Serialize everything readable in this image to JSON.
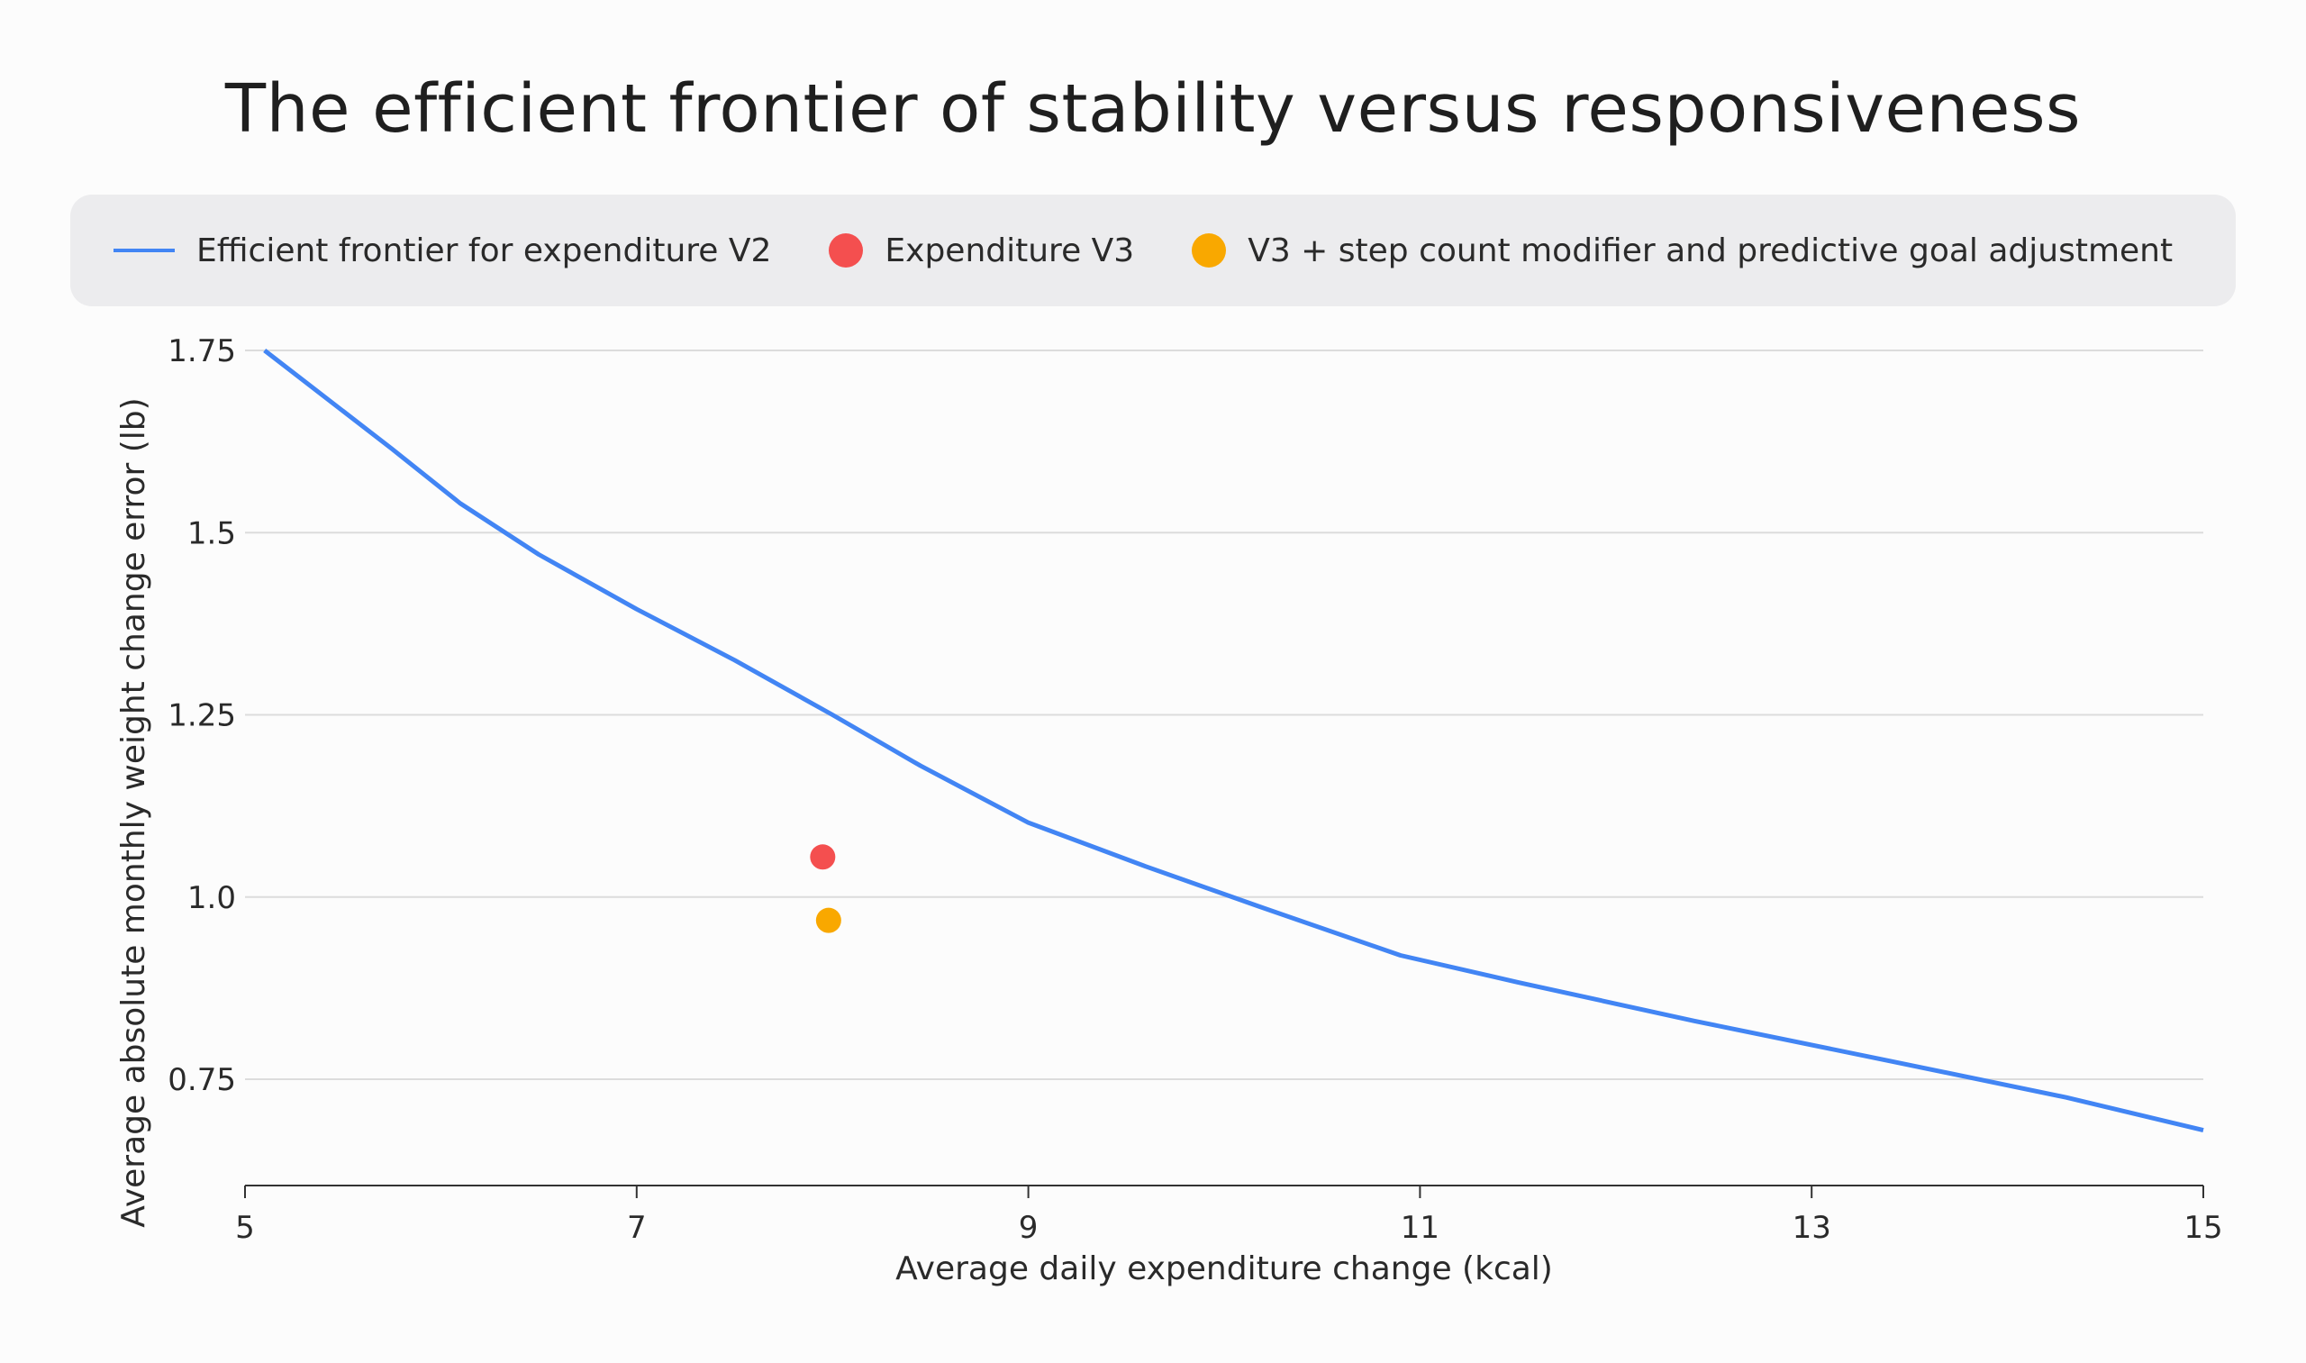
{
  "chart_data": {
    "type": "line",
    "title": "The efficient frontier of stability versus responsiveness",
    "xlabel": "Average daily expenditure change (kcal)",
    "ylabel": "Average absolute monthly weight change error (lb)",
    "xlim": [
      5,
      15
    ],
    "ylim": [
      0.6,
      1.75
    ],
    "x_ticks": [
      5,
      7,
      9,
      11,
      13,
      15
    ],
    "x_tick_labels": [
      "5",
      "7",
      "9",
      "11",
      "13",
      "15"
    ],
    "y_ticks": [
      0.75,
      1.0,
      1.25,
      1.5,
      1.75
    ],
    "y_tick_labels": [
      "0.75",
      "1.0",
      "1.25",
      "1.5",
      "1.75"
    ],
    "grid": "horizontal",
    "legend_position": "top",
    "series": [
      {
        "name": "Efficient frontier for expenditure V2",
        "kind": "line",
        "color": "#4285f4",
        "x": [
          5.1,
          5.75,
          6.1,
          6.5,
          7.0,
          7.5,
          8.0,
          8.45,
          9.0,
          9.6,
          10.2,
          10.9,
          11.5,
          12.4,
          13.4,
          14.3,
          15.0
        ],
        "y": [
          1.75,
          1.615,
          1.54,
          1.47,
          1.395,
          1.325,
          1.25,
          1.18,
          1.102,
          1.042,
          0.985,
          0.92,
          0.883,
          0.83,
          0.775,
          0.725,
          0.68
        ]
      },
      {
        "name": "Expenditure V3",
        "kind": "point",
        "color": "#f44f4f",
        "x": [
          7.95
        ],
        "y": [
          1.055
        ]
      },
      {
        "name": "V3 + step count modifier and predictive goal adjustment",
        "kind": "point",
        "color": "#f9a800",
        "x": [
          7.98
        ],
        "y": [
          0.968
        ]
      }
    ]
  }
}
